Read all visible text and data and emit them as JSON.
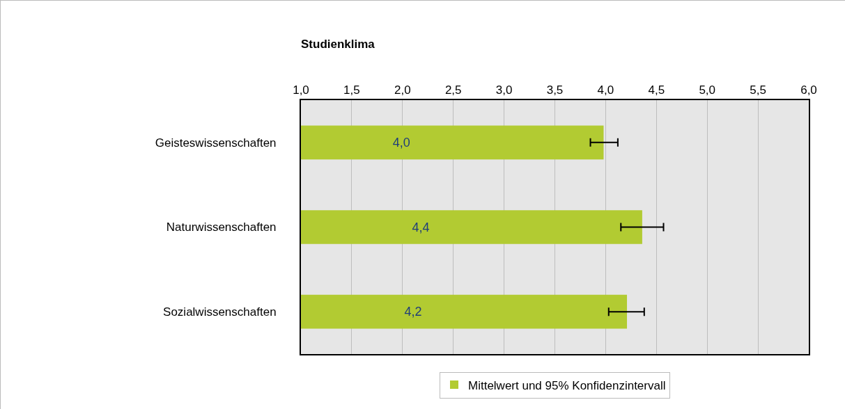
{
  "chart_data": {
    "type": "bar",
    "orientation": "horizontal",
    "title": "Studienklima",
    "categories": [
      "Geisteswissenschaften",
      "Naturwissenschaften",
      "Sozialwissenschaften"
    ],
    "series": [
      {
        "name": "Mittelwert und 95% Konfidenzintervall",
        "color": "#b2cb32",
        "values": [
          3.98,
          4.36,
          4.21
        ],
        "value_labels": [
          "4,0",
          "4,4",
          "4,2"
        ],
        "errors": [
          [
            3.85,
            4.12
          ],
          [
            4.15,
            4.57
          ],
          [
            4.03,
            4.38
          ]
        ]
      }
    ],
    "xlim": [
      1,
      6
    ],
    "xticks": [
      {
        "value": 1,
        "label": "1,0"
      },
      {
        "value": 1.5,
        "label": "1,5"
      },
      {
        "value": 2,
        "label": "2,0"
      },
      {
        "value": 2.5,
        "label": "2,5"
      },
      {
        "value": 3,
        "label": "3,0"
      },
      {
        "value": 3.5,
        "label": "3,5"
      },
      {
        "value": 4,
        "label": "4,0"
      },
      {
        "value": 4.5,
        "label": "4,5"
      },
      {
        "value": 5,
        "label": "5,0"
      },
      {
        "value": 5.5,
        "label": "5,5"
      },
      {
        "value": 6,
        "label": "6,0"
      }
    ],
    "grid": "x",
    "legend": "bottom"
  }
}
